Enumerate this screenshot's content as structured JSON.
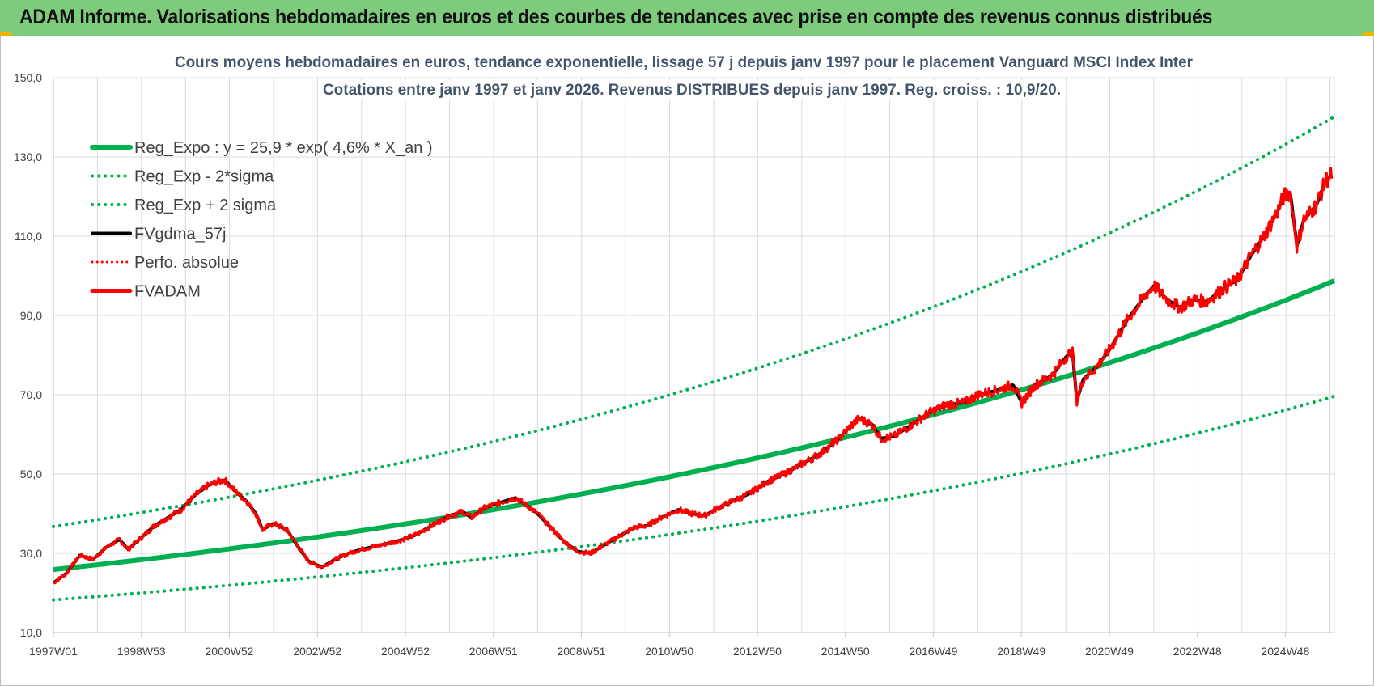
{
  "header": {
    "title": "ADAM Informe. Valorisations hebdomadaires en euros et des courbes de tendances avec prise en compte des revenus connus distribués"
  },
  "colors": {
    "header_bg": "#7ecb7e",
    "reg_green": "#00b050",
    "fv_black": "#000000",
    "fvadam_red": "#ff0000"
  },
  "chart_data": {
    "type": "line",
    "title": "Cours moyens hebdomadaires en euros, tendance exponentielle, lissage 57 j depuis janv 1997 pour le placement Vanguard MSCI Index Inter",
    "subtitle": "Cotations entre janv 1997 et janv 2026. Revenus DISTRIBUES depuis janv 1997. Reg. croiss. : 10,9/20.",
    "ylim": [
      10,
      150
    ],
    "y_ticks": [
      "150,0",
      "130,0",
      "110,0",
      "90,0",
      "70,0",
      "50,0",
      "30,0",
      "10,0"
    ],
    "x_tick_labels": [
      "1997W01",
      "1998W53",
      "2000W52",
      "2002W52",
      "2004W52",
      "2006W51",
      "2008W51",
      "2010W50",
      "2012W50",
      "2014W50",
      "2016W49",
      "2018W49",
      "2020W49",
      "2022W48",
      "2024W48"
    ],
    "x_range_years": [
      1997.0,
      2026.1
    ],
    "grid": true,
    "legend_position": "top-left",
    "regression": {
      "a": 25.9,
      "rate": 0.046,
      "sigma_factor": 1.419
    },
    "series": [
      {
        "name": "Reg_Expo : y = 25,9 * exp( 4,6% *  X_an )",
        "style": "solid-thick",
        "color": "#00b050"
      },
      {
        "name": "Reg_Exp - 2*sigma",
        "style": "dotted",
        "color": "#00b050"
      },
      {
        "name": "Reg_Exp + 2 sigma",
        "style": "dotted",
        "color": "#00b050"
      },
      {
        "name": "FVgdma_57j",
        "style": "solid",
        "color": "#000000"
      },
      {
        "name": "Perfo. absolue",
        "style": "dotted",
        "color": "#ff0000"
      },
      {
        "name": "FVADAM",
        "style": "solid-thick",
        "color": "#ff0000",
        "points": [
          [
            1997.0,
            22.5
          ],
          [
            1997.3,
            25
          ],
          [
            1997.6,
            29.5
          ],
          [
            1997.9,
            28.5
          ],
          [
            1998.2,
            31.5
          ],
          [
            1998.5,
            33.5
          ],
          [
            1998.7,
            31
          ],
          [
            1999.0,
            34
          ],
          [
            1999.3,
            37
          ],
          [
            1999.6,
            39
          ],
          [
            1999.9,
            41
          ],
          [
            2000.2,
            44.5
          ],
          [
            2000.5,
            47
          ],
          [
            2000.7,
            48
          ],
          [
            2000.9,
            48.5
          ],
          [
            2001.1,
            46
          ],
          [
            2001.4,
            43
          ],
          [
            2001.6,
            40
          ],
          [
            2001.75,
            36
          ],
          [
            2002.0,
            37.5
          ],
          [
            2002.3,
            36
          ],
          [
            2002.6,
            31
          ],
          [
            2002.8,
            28
          ],
          [
            2003.1,
            26.5
          ],
          [
            2003.4,
            28.5
          ],
          [
            2003.7,
            30
          ],
          [
            2004.0,
            31
          ],
          [
            2004.4,
            32
          ],
          [
            2004.8,
            33
          ],
          [
            2005.2,
            34.5
          ],
          [
            2005.6,
            37
          ],
          [
            2006.0,
            39.5
          ],
          [
            2006.3,
            40.5
          ],
          [
            2006.5,
            39
          ],
          [
            2006.8,
            41.5
          ],
          [
            2007.2,
            43
          ],
          [
            2007.5,
            44
          ],
          [
            2007.7,
            42.5
          ],
          [
            2008.0,
            40
          ],
          [
            2008.3,
            36.5
          ],
          [
            2008.6,
            33
          ],
          [
            2008.9,
            30.5
          ],
          [
            2009.2,
            30
          ],
          [
            2009.5,
            32
          ],
          [
            2009.8,
            34
          ],
          [
            2010.2,
            36.5
          ],
          [
            2010.5,
            37
          ],
          [
            2010.8,
            39
          ],
          [
            2011.2,
            41
          ],
          [
            2011.5,
            40
          ],
          [
            2011.8,
            39.5
          ],
          [
            2012.1,
            41.5
          ],
          [
            2012.5,
            43.5
          ],
          [
            2012.8,
            45
          ],
          [
            2013.2,
            48
          ],
          [
            2013.6,
            50
          ],
          [
            2014.0,
            52.5
          ],
          [
            2014.4,
            55
          ],
          [
            2014.8,
            58.5
          ],
          [
            2015.1,
            62
          ],
          [
            2015.3,
            64
          ],
          [
            2015.6,
            62.5
          ],
          [
            2015.8,
            59
          ],
          [
            2016.1,
            59.5
          ],
          [
            2016.5,
            62.5
          ],
          [
            2016.9,
            65.5
          ],
          [
            2017.3,
            67.5
          ],
          [
            2017.7,
            68
          ],
          [
            2018.0,
            70
          ],
          [
            2018.4,
            71
          ],
          [
            2018.8,
            72.5
          ],
          [
            2019.0,
            68
          ],
          [
            2019.3,
            72.5
          ],
          [
            2019.7,
            75
          ],
          [
            2020.0,
            79.5
          ],
          [
            2020.15,
            81
          ],
          [
            2020.25,
            68.5
          ],
          [
            2020.4,
            74
          ],
          [
            2020.7,
            77
          ],
          [
            2021.0,
            81.5
          ],
          [
            2021.4,
            89
          ],
          [
            2021.8,
            95
          ],
          [
            2022.0,
            97.5
          ],
          [
            2022.3,
            94
          ],
          [
            2022.6,
            92
          ],
          [
            2022.9,
            94
          ],
          [
            2023.2,
            93.5
          ],
          [
            2023.6,
            97
          ],
          [
            2023.9,
            99
          ],
          [
            2024.2,
            105
          ],
          [
            2024.5,
            110
          ],
          [
            2024.8,
            116
          ],
          [
            2024.95,
            120
          ],
          [
            2025.1,
            121
          ],
          [
            2025.25,
            107.5
          ],
          [
            2025.4,
            114
          ],
          [
            2025.7,
            118
          ],
          [
            2025.9,
            124
          ],
          [
            2026.05,
            125.5
          ]
        ]
      }
    ]
  }
}
